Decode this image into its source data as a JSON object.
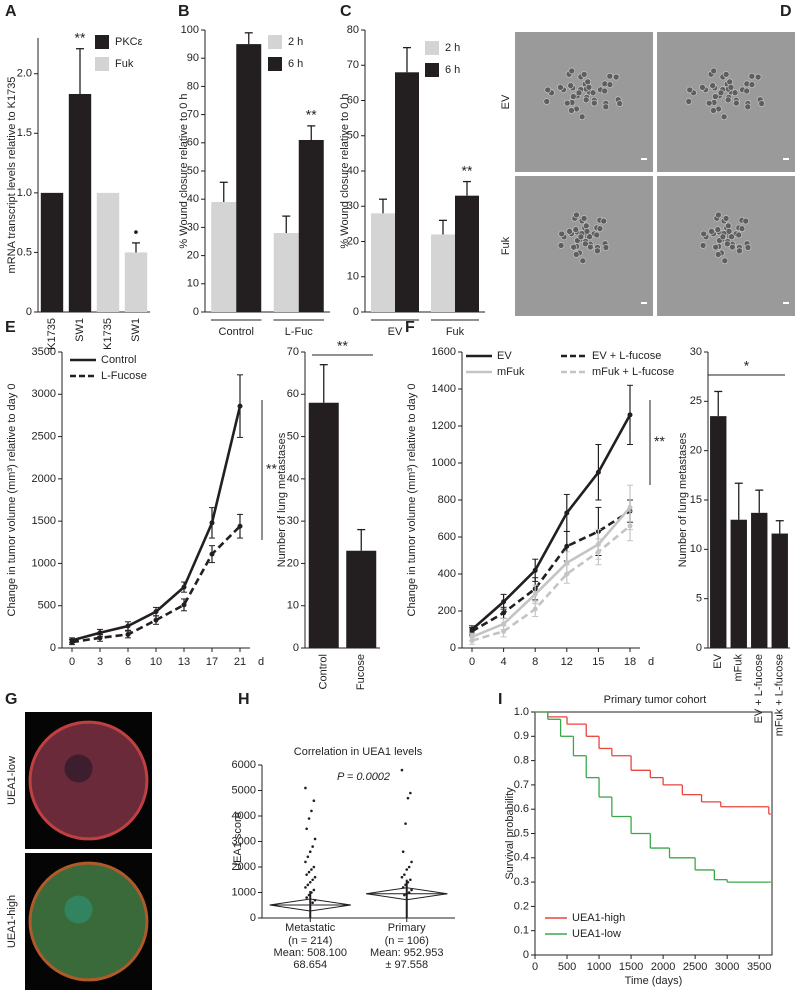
{
  "chart_data": [
    {
      "panel": "A",
      "type": "bar",
      "y_label": "mRNA transcript levels relative to K1735",
      "categories": [
        "K1735",
        "SW1",
        "K1735",
        "SW1"
      ],
      "series": [
        {
          "name": "PKCε",
          "color": "#231f20",
          "values": [
            1,
            1.83,
            null,
            null
          ],
          "errors": [
            null,
            0.38,
            null,
            null
          ]
        },
        {
          "name": "Fuk",
          "color": "#d4d4d4",
          "values": [
            null,
            null,
            1,
            0.5
          ],
          "errors": [
            null,
            null,
            null,
            0.08
          ]
        }
      ],
      "ylim": [
        0,
        2.3
      ],
      "yticks": [
        0,
        0.5,
        {
          "value": 1,
          "label": "1.0"
        },
        1.5,
        {
          "value": 2,
          "label": "2.0"
        }
      ],
      "annotations": [
        "**",
        "•"
      ]
    },
    {
      "panel": "B",
      "type": "bar",
      "y_label": "% Wound closure relative to 0 h",
      "categories": [
        "Control",
        "L-Fuc"
      ],
      "series": [
        {
          "name": "2 h",
          "color": "#d4d4d4",
          "values": [
            39,
            28
          ],
          "errors": [
            7,
            6
          ]
        },
        {
          "name": "6 h",
          "color": "#231f20",
          "values": [
            95,
            61
          ],
          "errors": [
            4,
            5
          ]
        }
      ],
      "ylim": [
        0,
        100
      ],
      "yticks": [
        0,
        10,
        20,
        30,
        40,
        50,
        60,
        70,
        80,
        90,
        100
      ],
      "annotations": [
        "**"
      ]
    },
    {
      "panel": "C",
      "type": "bar",
      "y_label": "% Wound closure relative to 0 h",
      "categories": [
        "EV",
        "Fuk"
      ],
      "series": [
        {
          "name": "2 h",
          "color": "#d4d4d4",
          "values": [
            28,
            22
          ],
          "errors": [
            4,
            4
          ]
        },
        {
          "name": "6 h",
          "color": "#231f20",
          "values": [
            68,
            33
          ],
          "errors": [
            7,
            4
          ]
        }
      ],
      "ylim": [
        0,
        80
      ],
      "yticks": [
        0,
        10,
        20,
        30,
        40,
        50,
        60,
        70,
        80
      ],
      "annotations": [
        "**"
      ]
    },
    {
      "panel": "E",
      "type": "line",
      "y_label": "Change in tumor volume (mm³) relative to day 0",
      "x_unit": "d",
      "categories": [
        "0",
        "3",
        "6",
        "10",
        "13",
        "17",
        "21"
      ],
      "series": [
        {
          "name": "Control",
          "color": "#231f20",
          "dash": false,
          "values": [
            90,
            180,
            260,
            430,
            720,
            1480,
            2860
          ],
          "errors": [
            30,
            40,
            50,
            50,
            60,
            180,
            370
          ]
        },
        {
          "name": "L-Fucose",
          "color": "#231f20",
          "dash": true,
          "values": [
            70,
            120,
            160,
            330,
            510,
            1110,
            1440
          ],
          "errors": [
            30,
            40,
            40,
            50,
            70,
            100,
            140
          ]
        }
      ],
      "ylim": [
        0,
        3500
      ],
      "yticks": [
        0,
        500,
        1000,
        1500,
        2000,
        2500,
        3000,
        3500
      ],
      "annotations": [
        "**"
      ]
    },
    {
      "type": "bar",
      "y_label": "Number of lung metastases",
      "categories": [
        "Control",
        "Fucose"
      ],
      "color": "#231f20",
      "values": [
        58,
        23
      ],
      "errors": [
        9,
        5
      ],
      "ylim": [
        0,
        70
      ],
      "yticks": [
        0,
        10,
        20,
        30,
        40,
        50,
        60,
        70
      ],
      "annotations": [
        "**"
      ]
    },
    {
      "panel": "F",
      "type": "line",
      "y_label": "Change in tumor volume (mm³) relative to day 0",
      "x_unit": "d",
      "categories": [
        "0",
        "4",
        "8",
        "12",
        "15",
        "18"
      ],
      "series": [
        {
          "name": "EV",
          "color": "#231f20",
          "dash": false,
          "values": [
            100,
            250,
            420,
            730,
            950,
            1260
          ],
          "errors": [
            20,
            40,
            60,
            100,
            150,
            160
          ]
        },
        {
          "name": "EV + L-fucose",
          "color": "#231f20",
          "dash": true,
          "values": [
            90,
            190,
            320,
            550,
            630,
            740
          ],
          "errors": [
            20,
            30,
            60,
            80,
            130,
            60
          ]
        },
        {
          "name": "mFuk",
          "color": "#c4c4c4",
          "dash": false,
          "values": [
            60,
            130,
            290,
            460,
            560,
            760
          ],
          "errors": [
            20,
            30,
            50,
            60,
            80,
            120
          ]
        },
        {
          "name": "mFuk + L-fucose",
          "color": "#c4c4c4",
          "dash": true,
          "values": [
            40,
            90,
            210,
            400,
            520,
            660
          ],
          "errors": [
            20,
            30,
            40,
            50,
            70,
            80
          ]
        }
      ],
      "ylim": [
        0,
        1600
      ],
      "yticks": [
        0,
        200,
        400,
        600,
        800,
        1000,
        1200,
        1400,
        1600
      ],
      "annotations": [
        "**"
      ]
    },
    {
      "type": "bar",
      "y_label": "Number of lung metastases",
      "categories": [
        "EV",
        "mFuk",
        "EV + L-fucose",
        "mFuk + L-fucose"
      ],
      "color": "#231f20",
      "values": [
        23.5,
        13,
        13.7,
        11.6
      ],
      "errors": [
        2.5,
        3.7,
        2.3,
        1.3
      ],
      "ylim": [
        0,
        30
      ],
      "yticks": [
        0,
        5,
        10,
        15,
        20,
        25,
        30
      ],
      "annotations": [
        "*"
      ]
    },
    {
      "panel": "H",
      "type": "dot",
      "title": "Correlation in UEA1 levels",
      "y_label": "UEA1 score",
      "categories": [
        "Metastatic",
        "Primary"
      ],
      "category_notes": [
        [
          "(n = 214)",
          "Mean: 508.100",
          "68.654"
        ],
        [
          "(n = 106)",
          "Mean: 952.953",
          "± 97.558"
        ]
      ],
      "means": [
        508.1,
        952.953
      ],
      "points": [
        [
          5100,
          4600,
          4200,
          3900,
          3500,
          3100,
          2800,
          2600,
          2400,
          2200,
          2000,
          1900,
          1800,
          1700,
          1600,
          1500,
          1400,
          1300,
          1200,
          1100,
          1000,
          900,
          800,
          700,
          600
        ],
        [
          5800,
          4900,
          4700,
          3700,
          2600,
          2200,
          2000,
          1900,
          1700,
          1600,
          1500,
          1400,
          1300,
          1200,
          1100,
          1000,
          950,
          900
        ]
      ],
      "ylim": [
        0,
        6000
      ],
      "yticks": [
        0,
        1000,
        2000,
        3000,
        4000,
        5000,
        6000
      ],
      "annotations": [
        "P = 0.0002"
      ]
    },
    {
      "panel": "I",
      "type": "step",
      "title": "Primary tumor cohort",
      "y_label": "Survival probability",
      "x_label": "Time (days)",
      "series": [
        {
          "name": "UEA1-high",
          "color": "#e8453c",
          "x": [
            0,
            200,
            500,
            800,
            1000,
            1200,
            1500,
            1800,
            2000,
            2300,
            2600,
            2900,
            3300,
            3600,
            3650
          ],
          "values": [
            1,
            0.98,
            0.95,
            0.9,
            0.85,
            0.82,
            0.76,
            0.73,
            0.7,
            0.66,
            0.63,
            0.61,
            0.61,
            0.61,
            0.58
          ]
        },
        {
          "name": "UEA1-low",
          "color": "#3aa84a",
          "x": [
            0,
            200,
            400,
            600,
            800,
            1000,
            1200,
            1500,
            1800,
            2100,
            2500,
            2800,
            3000,
            3650
          ],
          "values": [
            1,
            0.97,
            0.9,
            0.82,
            0.73,
            0.65,
            0.57,
            0.5,
            0.44,
            0.4,
            0.35,
            0.31,
            0.3,
            0.3
          ]
        }
      ],
      "xlim": [
        0,
        3700
      ],
      "xticks": [
        0,
        500,
        1000,
        1500,
        2000,
        2500,
        3000,
        3500
      ],
      "ylim": [
        0,
        1
      ],
      "yticks": [
        0,
        0.1,
        0.2,
        0.3,
        0.4,
        0.5,
        0.6,
        0.7,
        0.8,
        0.9,
        {
          "value": 1,
          "label": "1.0"
        }
      ]
    }
  ],
  "micrographs": [
    {
      "panel": "D",
      "row_labels": [
        "EV",
        "Fuk"
      ]
    },
    {
      "panel": "G",
      "row_labels": [
        "UEA1-low",
        "UEA1-high"
      ]
    }
  ]
}
